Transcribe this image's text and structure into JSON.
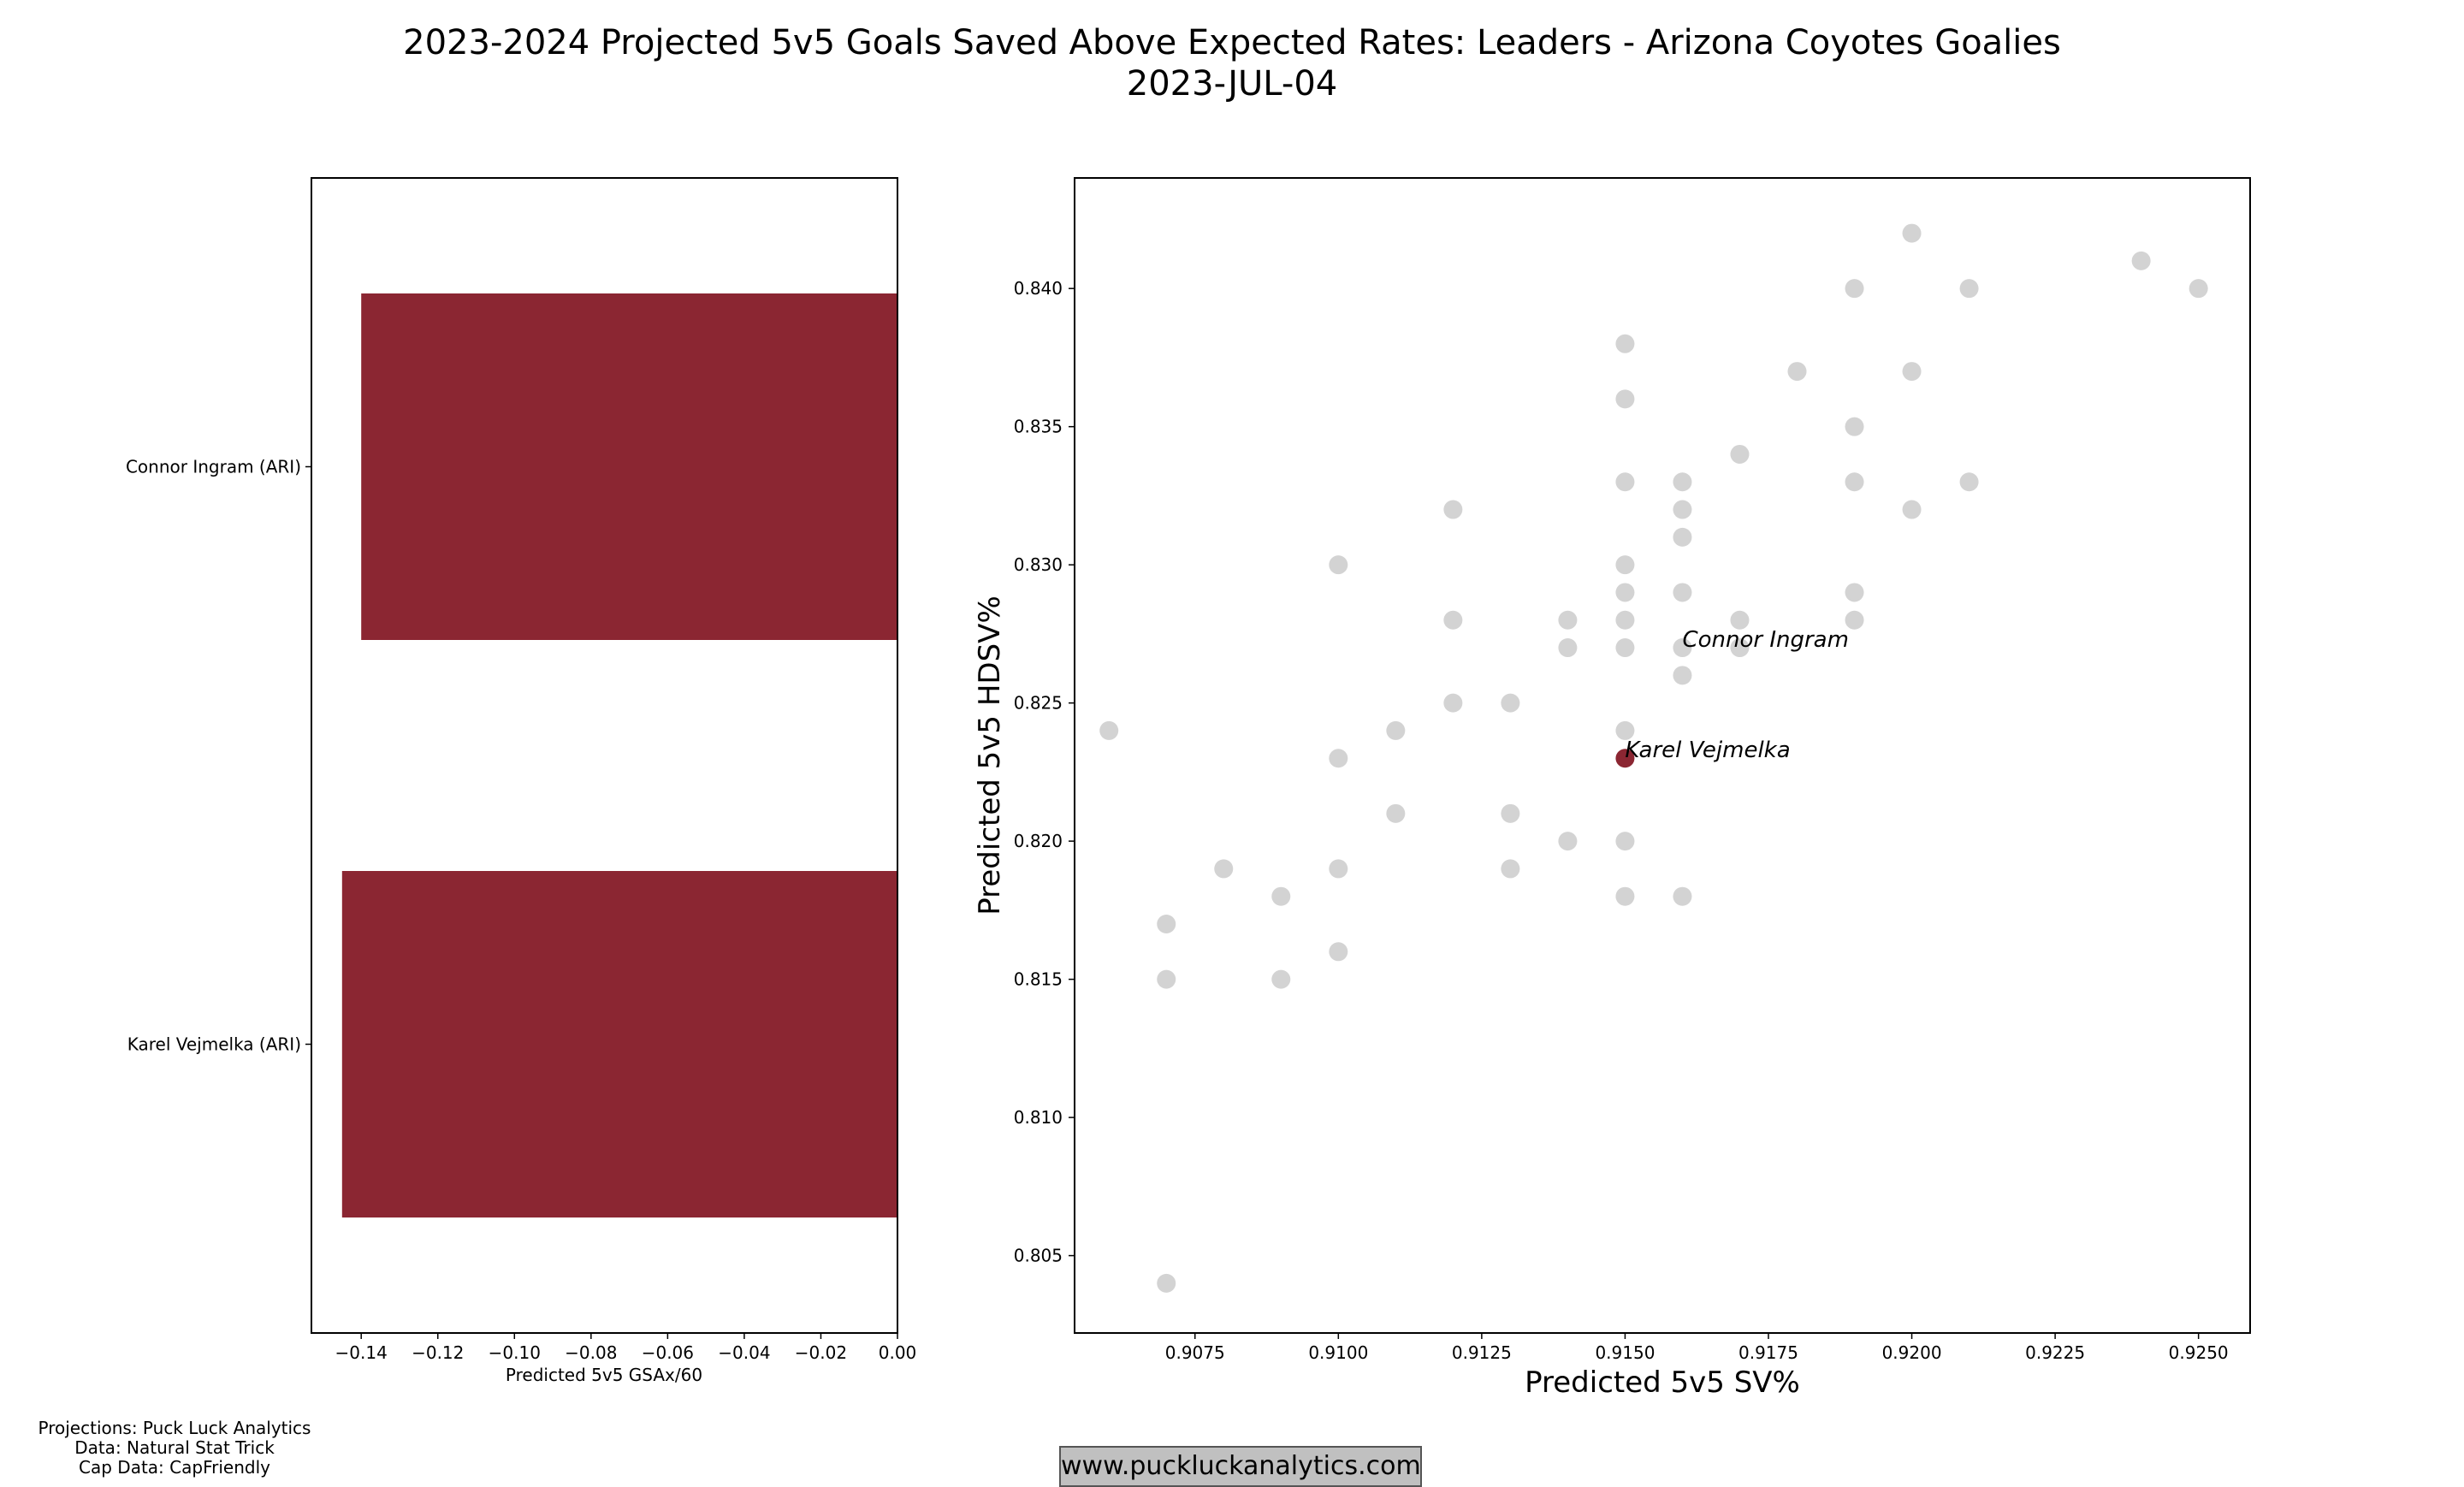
{
  "header": {
    "title_line1": "2023-2024 Projected 5v5 Goals Saved Above Expected Rates: Leaders - Arizona Coyotes Goalies",
    "title_line2": "2023-JUL-04"
  },
  "footer": {
    "credit_projections": "Projections: Puck Luck Analytics",
    "credit_data": "Data: Natural Stat Trick",
    "credit_cap": "Cap Data: CapFriendly",
    "website": "www.puckluckanalytics.com"
  },
  "colors": {
    "bar": "#8b2632",
    "highlight_point": "#8b2632",
    "background_point": "#d3d3d3"
  },
  "chart_data": [
    {
      "type": "bar",
      "orientation": "horizontal",
      "categories": [
        "Connor Ingram (ARI)",
        "Karel Vejmelka (ARI)"
      ],
      "values": [
        -0.14,
        -0.145
      ],
      "xlabel": "Predicted 5v5 GSAx/60",
      "ylabel": "",
      "xlim": [
        -0.153,
        0.0
      ],
      "xticks": [
        "−0.14",
        "−0.12",
        "−0.10",
        "−0.08",
        "−0.06",
        "−0.04",
        "−0.02",
        "0.00"
      ],
      "xtick_values": [
        -0.14,
        -0.12,
        -0.1,
        -0.08,
        -0.06,
        -0.04,
        -0.02,
        0.0
      ],
      "grid": false
    },
    {
      "type": "scatter",
      "xlabel": "Predicted 5v5 SV%",
      "ylabel": "Predicted 5v5 HDSV%",
      "xlim": [
        0.9054,
        0.9259
      ],
      "ylim": [
        0.8022,
        0.844
      ],
      "xticks": [
        "0.9075",
        "0.9100",
        "0.9125",
        "0.9150",
        "0.9175",
        "0.9200",
        "0.9225",
        "0.9250"
      ],
      "xtick_values": [
        0.9075,
        0.91,
        0.9125,
        0.915,
        0.9175,
        0.92,
        0.9225,
        0.925
      ],
      "yticks": [
        "0.805",
        "0.810",
        "0.815",
        "0.820",
        "0.825",
        "0.830",
        "0.835",
        "0.840"
      ],
      "ytick_values": [
        0.805,
        0.81,
        0.815,
        0.82,
        0.825,
        0.83,
        0.835,
        0.84
      ],
      "grid": false,
      "background_points": [
        [
          0.906,
          0.824
        ],
        [
          0.907,
          0.817
        ],
        [
          0.907,
          0.815
        ],
        [
          0.907,
          0.804
        ],
        [
          0.908,
          0.819
        ],
        [
          0.909,
          0.818
        ],
        [
          0.909,
          0.815
        ],
        [
          0.91,
          0.83
        ],
        [
          0.91,
          0.823
        ],
        [
          0.91,
          0.819
        ],
        [
          0.91,
          0.816
        ],
        [
          0.911,
          0.824
        ],
        [
          0.911,
          0.821
        ],
        [
          0.912,
          0.832
        ],
        [
          0.912,
          0.828
        ],
        [
          0.912,
          0.825
        ],
        [
          0.913,
          0.825
        ],
        [
          0.913,
          0.821
        ],
        [
          0.913,
          0.819
        ],
        [
          0.914,
          0.828
        ],
        [
          0.914,
          0.827
        ],
        [
          0.914,
          0.82
        ],
        [
          0.915,
          0.838
        ],
        [
          0.915,
          0.836
        ],
        [
          0.915,
          0.833
        ],
        [
          0.915,
          0.83
        ],
        [
          0.915,
          0.829
        ],
        [
          0.915,
          0.828
        ],
        [
          0.915,
          0.827
        ],
        [
          0.915,
          0.824
        ],
        [
          0.915,
          0.82
        ],
        [
          0.915,
          0.818
        ],
        [
          0.916,
          0.833
        ],
        [
          0.916,
          0.832
        ],
        [
          0.916,
          0.831
        ],
        [
          0.916,
          0.829
        ],
        [
          0.916,
          0.827
        ],
        [
          0.916,
          0.826
        ],
        [
          0.916,
          0.818
        ],
        [
          0.917,
          0.834
        ],
        [
          0.917,
          0.828
        ],
        [
          0.917,
          0.827
        ],
        [
          0.918,
          0.837
        ],
        [
          0.919,
          0.84
        ],
        [
          0.919,
          0.835
        ],
        [
          0.919,
          0.833
        ],
        [
          0.919,
          0.829
        ],
        [
          0.919,
          0.828
        ],
        [
          0.92,
          0.842
        ],
        [
          0.92,
          0.837
        ],
        [
          0.92,
          0.832
        ],
        [
          0.921,
          0.84
        ],
        [
          0.921,
          0.833
        ],
        [
          0.924,
          0.841
        ],
        [
          0.925,
          0.84
        ]
      ],
      "highlight_points": [
        {
          "label": "Karel Vejmelka",
          "x": 0.915,
          "y": 0.823
        }
      ],
      "annotations": [
        {
          "text": "Connor Ingram",
          "x": 0.916,
          "y": 0.827
        },
        {
          "text": "Karel Vejmelka",
          "x": 0.915,
          "y": 0.823
        }
      ]
    }
  ]
}
